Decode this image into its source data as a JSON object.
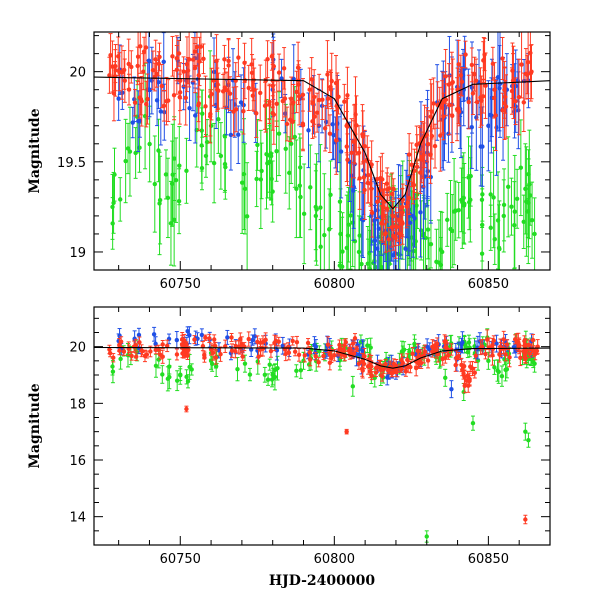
{
  "chart_data": [
    {
      "type": "scatter",
      "title": "",
      "xlabel": "",
      "ylabel": "Magnitude",
      "xlim": [
        60722,
        60870
      ],
      "ylim": [
        20.22,
        18.9
      ],
      "y_inverted": true,
      "grid": false,
      "xticks": [
        60750,
        60800,
        60850
      ],
      "xtick_labels": [
        "60750",
        "60800",
        "60850"
      ],
      "yticks": [
        19,
        19.5,
        20
      ],
      "ytick_labels": [
        "19",
        "19.5",
        "20"
      ],
      "colors": {
        "green": "#22dd22",
        "blue": "#1f4fe6",
        "red": "#ff3a22"
      },
      "series": [
        {
          "color": "green",
          "x": [
            60728,
            60736,
            60746,
            60752,
            60760,
            60771,
            60779,
            60786,
            60794,
            60802,
            60808,
            60813,
            60817,
            60820,
            60825,
            60829,
            60835,
            60842,
            60848,
            60855,
            60862,
            60865
          ],
          "y": [
            19.25,
            19.75,
            19.3,
            19.45,
            19.7,
            19.35,
            19.5,
            19.6,
            19.2,
            19.1,
            19.0,
            18.95,
            19.0,
            19.15,
            19.2,
            19.1,
            19.0,
            19.3,
            19.15,
            19.2,
            19.35,
            19.1
          ],
          "err": [
            0.18,
            0.2,
            0.22,
            0.18,
            0.2,
            0.25,
            0.2,
            0.22,
            0.25,
            0.25,
            0.2,
            0.2,
            0.2,
            0.2,
            0.25,
            0.2,
            0.22,
            0.25,
            0.2,
            0.2,
            0.25,
            0.2
          ]
        },
        {
          "color": "blue",
          "x": [
            60730,
            60740,
            60752,
            60765,
            60780,
            60795,
            60805,
            60812,
            60816,
            60820,
            60824,
            60830,
            60836,
            60842,
            60850,
            60856,
            60863
          ],
          "y": [
            19.85,
            19.9,
            19.95,
            19.8,
            19.9,
            19.7,
            19.5,
            19.2,
            19.05,
            19.1,
            19.2,
            19.5,
            19.8,
            19.9,
            19.7,
            19.9,
            19.95
          ],
          "err": [
            0.12,
            0.15,
            0.12,
            0.15,
            0.15,
            0.2,
            0.22,
            0.2,
            0.18,
            0.2,
            0.22,
            0.25,
            0.2,
            0.2,
            0.25,
            0.2,
            0.15
          ]
        },
        {
          "color": "red",
          "x": [
            60727,
            60732,
            60738,
            60744,
            60750,
            60756,
            60762,
            60768,
            60774,
            60780,
            60786,
            60792,
            60798,
            60804,
            60808,
            60812,
            60816,
            60819,
            60822,
            60826,
            60830,
            60835,
            60840,
            60846,
            60852,
            60858,
            60864
          ],
          "y": [
            19.98,
            19.95,
            20.0,
            19.92,
            19.95,
            19.98,
            19.9,
            19.95,
            19.9,
            19.92,
            19.85,
            19.9,
            19.85,
            19.7,
            19.55,
            19.35,
            19.25,
            19.2,
            19.25,
            19.45,
            19.65,
            19.8,
            19.9,
            19.95,
            19.9,
            19.95,
            20.0
          ],
          "err": [
            0.1,
            0.12,
            0.1,
            0.12,
            0.1,
            0.12,
            0.12,
            0.1,
            0.12,
            0.12,
            0.12,
            0.12,
            0.15,
            0.15,
            0.15,
            0.12,
            0.1,
            0.08,
            0.1,
            0.12,
            0.15,
            0.15,
            0.12,
            0.12,
            0.15,
            0.15,
            0.15
          ]
        }
      ],
      "trend": {
        "x": [
          60722,
          60790,
          60800,
          60810,
          60815,
          60819,
          60823,
          60828,
          60835,
          60845,
          60870
        ],
        "y": [
          19.97,
          19.95,
          19.85,
          19.55,
          19.32,
          19.24,
          19.32,
          19.6,
          19.85,
          19.93,
          19.95
        ]
      }
    },
    {
      "type": "scatter",
      "title": "",
      "xlabel": "HJD-2400000",
      "ylabel": "Magnitude",
      "xlim": [
        60722,
        60870
      ],
      "ylim": [
        21.4,
        13.0
      ],
      "y_inverted": true,
      "grid": false,
      "xticks": [
        60750,
        60800,
        60850
      ],
      "xtick_labels": [
        "60750",
        "60800",
        "60850"
      ],
      "yticks": [
        14,
        16,
        18,
        20
      ],
      "ytick_labels": [
        "14",
        "16",
        "18",
        "20"
      ],
      "colors": {
        "green": "#22dd22",
        "blue": "#1f4fe6",
        "red": "#ff3a22"
      },
      "series": [
        {
          "color": "green",
          "x": [
            60728,
            60736,
            60749,
            60760,
            60771,
            60780,
            60790,
            60797,
            60806,
            60812,
            60818,
            60824,
            60830,
            60836,
            60842,
            60845,
            60850,
            60856,
            60862,
            60863,
            60865
          ],
          "y": [
            19.3,
            19.8,
            18.8,
            19.5,
            19.4,
            19.0,
            19.5,
            19.8,
            18.6,
            19.0,
            19.4,
            19.6,
            13.3,
            18.9,
            18.4,
            17.3,
            19.5,
            19.2,
            17.0,
            16.7,
            19.4
          ],
          "err": [
            0.3,
            0.3,
            0.35,
            0.3,
            0.3,
            0.35,
            0.3,
            0.3,
            0.35,
            0.3,
            0.3,
            0.3,
            0.2,
            0.3,
            0.3,
            0.25,
            0.3,
            0.3,
            0.3,
            0.25,
            0.3
          ]
        },
        {
          "color": "blue",
          "x": [
            60730,
            60742,
            60755,
            60768,
            60781,
            60794,
            60806,
            60814,
            60820,
            60828,
            60838,
            60846,
            60855,
            60864
          ],
          "y": [
            20.2,
            20.1,
            20.3,
            20.0,
            20.2,
            20.0,
            19.9,
            19.4,
            19.1,
            19.6,
            18.5,
            19.9,
            20.0,
            20.2
          ],
          "err": [
            0.25,
            0.25,
            0.25,
            0.25,
            0.25,
            0.25,
            0.3,
            0.3,
            0.25,
            0.3,
            0.3,
            0.3,
            0.3,
            0.25
          ]
        },
        {
          "color": "red",
          "x": [
            60727,
            60735,
            60743,
            60751,
            60752,
            60760,
            60768,
            60776,
            60784,
            60792,
            60800,
            60804,
            60808,
            60812,
            60816,
            60820,
            60824,
            60828,
            60833,
            60838,
            60843,
            60848,
            60854,
            60860,
            60862,
            60866
          ],
          "y": [
            19.9,
            20.0,
            19.9,
            20.0,
            17.8,
            19.9,
            20.0,
            19.9,
            19.9,
            19.8,
            19.7,
            17.0,
            19.4,
            19.3,
            19.2,
            19.2,
            19.3,
            19.6,
            19.8,
            19.9,
            18.8,
            20.0,
            19.9,
            20.0,
            13.9,
            20.0
          ],
          "err": [
            0.15,
            0.2,
            0.15,
            0.2,
            0.1,
            0.2,
            0.2,
            0.2,
            0.2,
            0.2,
            0.2,
            0.08,
            0.2,
            0.2,
            0.15,
            0.15,
            0.2,
            0.2,
            0.2,
            0.2,
            0.15,
            0.25,
            0.25,
            0.25,
            0.15,
            0.25
          ]
        }
      ],
      "trend": {
        "x": [
          60722,
          60790,
          60800,
          60810,
          60815,
          60819,
          60823,
          60828,
          60835,
          60845,
          60870
        ],
        "y": [
          19.97,
          19.95,
          19.85,
          19.55,
          19.32,
          19.24,
          19.32,
          19.6,
          19.85,
          19.93,
          19.95
        ]
      }
    }
  ]
}
